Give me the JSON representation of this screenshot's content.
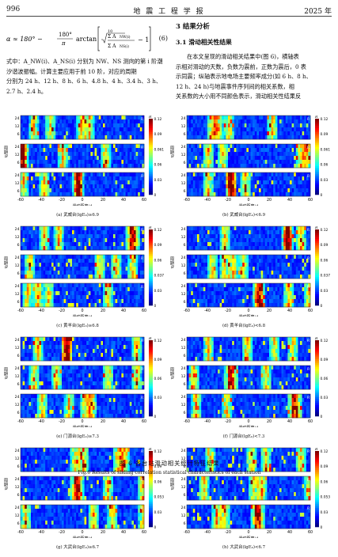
{
  "header": {
    "page_number": "996",
    "journal": "地  震  工  程  学  报",
    "year": "2025 年"
  },
  "equation": {
    "prefix": "α ≈ 180° −",
    "frac_num": "180°",
    "frac_den": "π",
    "arctan": "arctan",
    "sum_text": "√2 ΣA_NW(i) / ΣA_NS(i) − 1",
    "number": "(6)"
  },
  "left_text": [
    "式中：A_NW(i)、A_NS(i) 分别为 NW、NS 测向的第 i 阶潮",
    "汐谐波振幅。计算主要应用于前 10 阶，对应的周期",
    "分别为 24 h、12 h、8 h、6 h、4.8 h、4 h、3.4 h、3 h、",
    "2.7 h、2.4 h。"
  ],
  "section": {
    "title": "3  结果分析",
    "sub_title": "3.1  滑动相关性结果"
  },
  "right_text": [
    "在本文呈现的滑动相关结果中(图 6)，横轴表",
    "示相对滑动的天数，负数为震前，正数为震后，0 表",
    "示同震；纵轴表示地电场主要频率成分(如 6 h、8 h、",
    "12 h、24 h)与地震事件序列间的相关系数，相",
    "关系数的大小用不同颜色表示，滑动相关性结果反"
  ],
  "figure": {
    "caption_cn": "图 6   各台站滑动相关统计特征结果",
    "caption_en": "Fig.6   Results of sliding correlation statistical characteristics of each station",
    "x_axis_label": "滑动距离/d",
    "y_axis_label": "周期/h",
    "x_ticks": [
      "-60",
      "-40",
      "-20",
      "0",
      "20",
      "40",
      "60"
    ],
    "y_ticks": [
      "24",
      "12",
      "6"
    ],
    "colorbar_label": "R",
    "panels": [
      {
        "label": "(a) 武威台(lgE₀)≥6.9",
        "colorbar": [
          "0.12",
          "0.09",
          "0.061",
          "0.06",
          "0.03",
          "0"
        ]
      },
      {
        "label": "(b) 武威台(lgE₀)<6.9",
        "colorbar": [
          "0.12",
          "0.09",
          "0.061",
          "0.06",
          "0.03",
          "0"
        ]
      },
      {
        "label": "(c) 黄羊台(lgE₀)≥6.8",
        "colorbar": [
          "0.12",
          "0.09",
          "0.06",
          "0.037",
          "0.03",
          "0"
        ]
      },
      {
        "label": "(d) 黄羊台(lgE₀)<6.8",
        "colorbar": [
          "0.12",
          "0.09",
          "0.06",
          "0.037",
          "0.03",
          "0"
        ]
      },
      {
        "label": "(e) 门源台(lgE₀)≥7.3",
        "colorbar": [
          "0.12",
          "0.09",
          "0.06",
          "0.03",
          "0"
        ]
      },
      {
        "label": "(f) 门源台(lgE₀)<7.3",
        "colorbar": [
          "0.12",
          "0.09",
          "0.06",
          "0.03",
          "0"
        ]
      },
      {
        "label": "(g) 大武台(lgE₀)≥6.7",
        "colorbar": [
          "0.12",
          "0.09",
          "0.06",
          "0.053",
          "0.03",
          "0"
        ]
      },
      {
        "label": "(h) 大武台(lgE₀)<6.7",
        "colorbar": [
          "0.12",
          "0.09",
          "0.06",
          "0.053",
          "0.03",
          "0"
        ]
      }
    ]
  }
}
